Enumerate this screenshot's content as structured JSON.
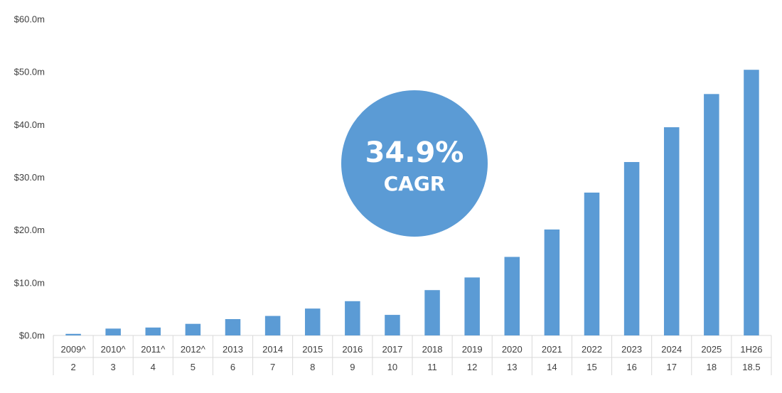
{
  "chart_data": {
    "type": "bar",
    "title": "",
    "xlabel": "",
    "ylabel": "",
    "ylim": [
      0,
      60
    ],
    "y_ticks": [
      "$0.0m",
      "$10.0m",
      "$20.0m",
      "$30.0m",
      "$40.0m",
      "$50.0m",
      "$60.0m"
    ],
    "y_tick_values": [
      0,
      10,
      20,
      30,
      40,
      50,
      60
    ],
    "grid": false,
    "categories": [
      "2009^",
      "2010^",
      "2011^",
      "2012^",
      "2013",
      "2014",
      "2015",
      "2016",
      "2017",
      "2018",
      "2019",
      "2020",
      "2021",
      "2022",
      "2023",
      "2024",
      "2025",
      "1H26"
    ],
    "sub_categories": [
      "2",
      "3",
      "4",
      "5",
      "6",
      "7",
      "8",
      "9",
      "10",
      "11",
      "12",
      "13",
      "14",
      "15",
      "16",
      "17",
      "18",
      "18.5"
    ],
    "values": [
      0.3,
      1.3,
      1.5,
      2.2,
      3.1,
      3.7,
      5.1,
      6.5,
      3.9,
      8.6,
      11.0,
      14.9,
      20.1,
      27.1,
      32.9,
      39.5,
      45.8,
      50.4
    ],
    "color": "#5B9BD5",
    "annotation": {
      "line1": "34.9%",
      "line2": "CAGR"
    }
  },
  "colors": {
    "bar": "#5B9BD5",
    "axis": "#D9D9D9",
    "text": "#404040",
    "badge": "#5B9BD5",
    "badge_text": "#FFFFFF"
  }
}
